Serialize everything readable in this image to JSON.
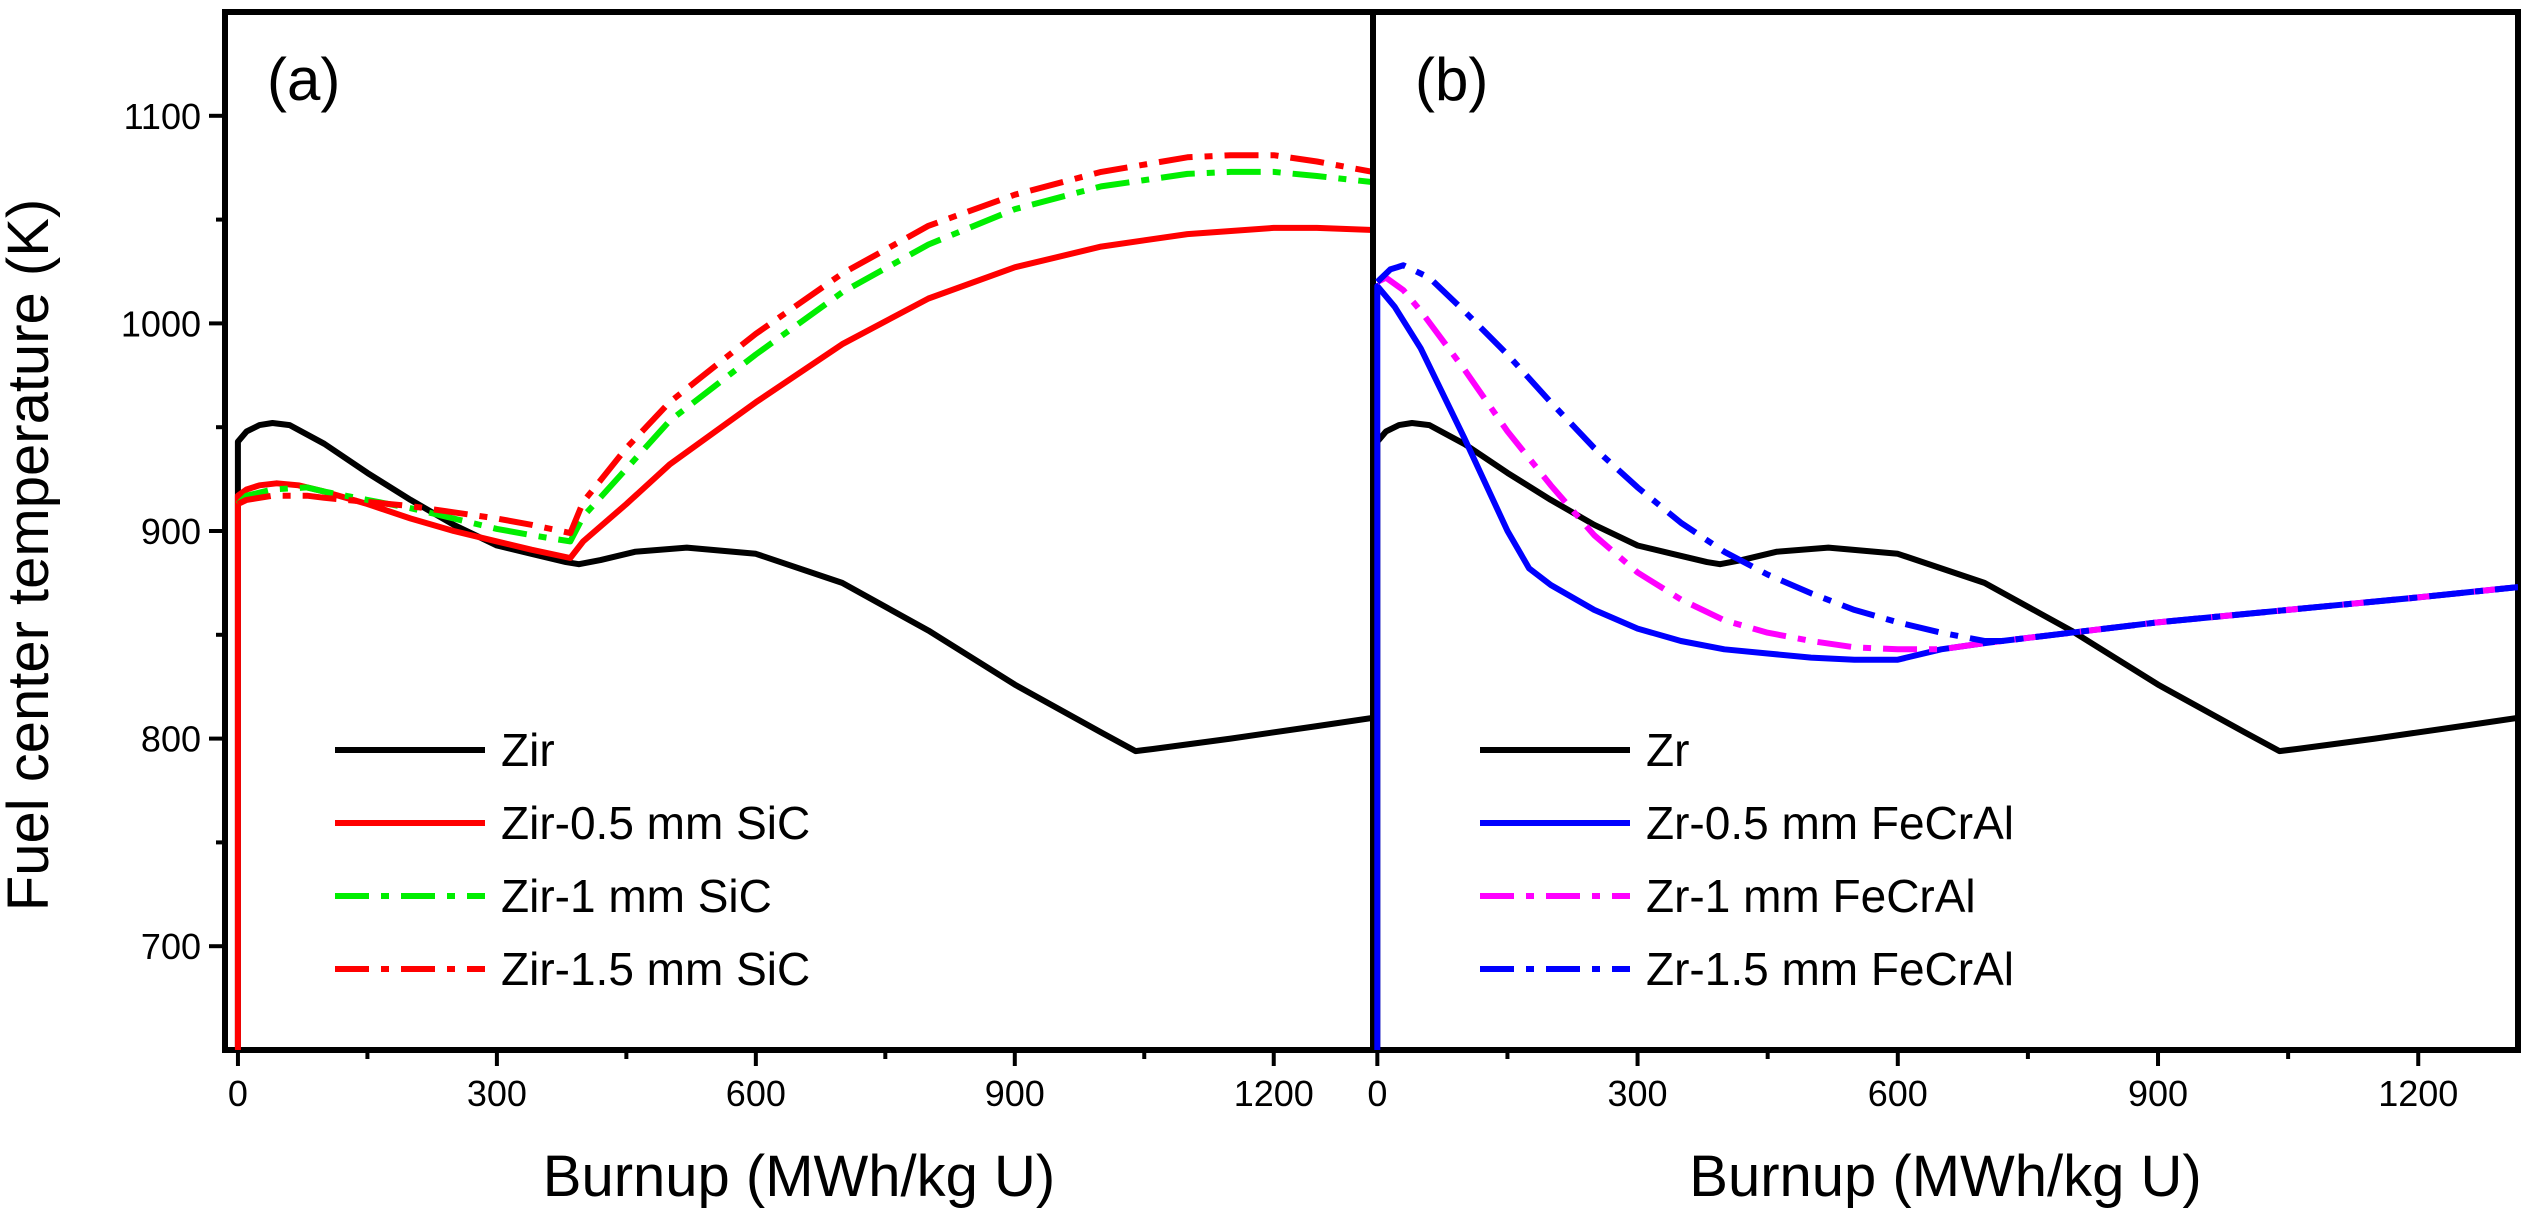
{
  "chart_data": [
    {
      "type": "line",
      "panel_label": "(a)",
      "xlabel": "Burnup (MWh/kg U)",
      "ylabel": "Fuel center temperature (K)",
      "xlim": [
        -15,
        1315
      ],
      "ylim": [
        650,
        1150
      ],
      "xticks": [
        0,
        300,
        600,
        900,
        1200
      ],
      "yticks": [
        700,
        800,
        900,
        1000,
        1100
      ],
      "legend_position": "lower-left",
      "series": [
        {
          "name": "Zir",
          "color": "#000000",
          "dash": "solid",
          "x": [
            0,
            0,
            10,
            25,
            40,
            60,
            100,
            150,
            200,
            250,
            300,
            340,
            380,
            395,
            420,
            460,
            520,
            600,
            700,
            800,
            900,
            1000,
            1040,
            1060,
            1150,
            1250,
            1315
          ],
          "y": [
            650,
            943,
            948,
            951,
            952,
            951,
            942,
            928,
            915,
            903,
            893,
            889,
            885,
            884,
            886,
            890,
            892,
            889,
            875,
            852,
            826,
            803,
            794,
            795,
            800,
            806,
            810
          ]
        },
        {
          "name": "Zir-0.5 mm SiC",
          "color": "#ff0000",
          "dash": "solid",
          "x": [
            0,
            0,
            10,
            25,
            45,
            70,
            100,
            150,
            200,
            250,
            300,
            340,
            385,
            400,
            450,
            500,
            600,
            700,
            800,
            900,
            1000,
            1100,
            1200,
            1250,
            1315
          ],
          "y": [
            650,
            917,
            920,
            922,
            923,
            922,
            919,
            913,
            906,
            900,
            895,
            891,
            887,
            895,
            913,
            932,
            962,
            990,
            1012,
            1027,
            1037,
            1043,
            1046,
            1046,
            1045
          ]
        },
        {
          "name": "Zir-1 mm SiC",
          "color": "#00ee00",
          "dash": "dashdot",
          "x": [
            0,
            10,
            40,
            80,
            100,
            150,
            200,
            250,
            300,
            340,
            385,
            400,
            450,
            500,
            600,
            700,
            800,
            900,
            1000,
            1100,
            1150,
            1200,
            1250,
            1315
          ],
          "y": [
            913,
            917,
            920,
            921,
            919,
            915,
            911,
            906,
            901,
            898,
            895,
            907,
            930,
            953,
            985,
            1015,
            1038,
            1055,
            1066,
            1072,
            1073,
            1073,
            1071,
            1068
          ]
        },
        {
          "name": "Zir-1.5 mm SiC",
          "color": "#ff0000",
          "dash": "dashdot",
          "x": [
            0,
            10,
            40,
            80,
            100,
            150,
            200,
            250,
            300,
            340,
            385,
            400,
            450,
            500,
            600,
            700,
            800,
            900,
            1000,
            1100,
            1150,
            1200,
            1250,
            1315
          ],
          "y": [
            913,
            915,
            917,
            917,
            916,
            914,
            912,
            909,
            906,
            903,
            899,
            914,
            940,
            962,
            995,
            1024,
            1047,
            1062,
            1073,
            1080,
            1081,
            1081,
            1078,
            1073
          ]
        }
      ]
    },
    {
      "type": "line",
      "panel_label": "(b)",
      "xlabel": "Burnup (MWh/kg U)",
      "ylabel": "",
      "xlim": [
        -5,
        1315
      ],
      "ylim": [
        650,
        1150
      ],
      "xticks": [
        0,
        300,
        600,
        900,
        1200
      ],
      "yticks": [
        700,
        800,
        900,
        1000,
        1100
      ],
      "legend_position": "lower-left",
      "series": [
        {
          "name": "Zr",
          "color": "#000000",
          "dash": "solid",
          "x": [
            0,
            0,
            10,
            25,
            40,
            60,
            100,
            150,
            200,
            250,
            300,
            340,
            380,
            395,
            420,
            460,
            520,
            600,
            700,
            800,
            900,
            1000,
            1040,
            1060,
            1150,
            1250,
            1315
          ],
          "y": [
            650,
            943,
            948,
            951,
            952,
            951,
            942,
            928,
            915,
            903,
            893,
            889,
            885,
            884,
            886,
            890,
            892,
            889,
            875,
            852,
            826,
            803,
            794,
            795,
            800,
            806,
            810
          ]
        },
        {
          "name": "Zr-0.5 mm FeCrAl",
          "color": "#0000ff",
          "dash": "solid",
          "x": [
            0,
            0,
            20,
            50,
            100,
            150,
            175,
            200,
            250,
            300,
            350,
            400,
            450,
            500,
            550,
            600,
            650,
            700,
            800,
            900,
            1000,
            1100,
            1200,
            1315
          ],
          "y": [
            650,
            1018,
            1008,
            988,
            945,
            900,
            882,
            874,
            862,
            853,
            847,
            843,
            841,
            839,
            838,
            838,
            843,
            846,
            851,
            856,
            860,
            864,
            868,
            873
          ]
        },
        {
          "name": "Zr-1 mm FeCrAl",
          "color": "#ff00ff",
          "dash": "dashdot",
          "x": [
            0,
            10,
            30,
            50,
            100,
            150,
            200,
            250,
            300,
            350,
            400,
            450,
            500,
            550,
            600,
            650,
            700,
            800,
            900,
            1000,
            1100,
            1200,
            1315
          ],
          "y": [
            1020,
            1022,
            1016,
            1006,
            978,
            948,
            922,
            898,
            880,
            867,
            857,
            851,
            847,
            844,
            843,
            843,
            846,
            851,
            856,
            860,
            864,
            868,
            873
          ]
        },
        {
          "name": "Zr-1.5 mm FeCrAl",
          "color": "#0000ff",
          "dash": "dashdot",
          "x": [
            0,
            15,
            30,
            60,
            100,
            150,
            200,
            250,
            300,
            350,
            400,
            450,
            500,
            550,
            600,
            650,
            700,
            720,
            800,
            900,
            1000,
            1100,
            1200,
            1315
          ],
          "y": [
            1020,
            1026,
            1028,
            1022,
            1006,
            985,
            962,
            940,
            921,
            904,
            890,
            879,
            870,
            862,
            856,
            851,
            847,
            847,
            851,
            856,
            860,
            864,
            868,
            873
          ]
        }
      ]
    }
  ]
}
